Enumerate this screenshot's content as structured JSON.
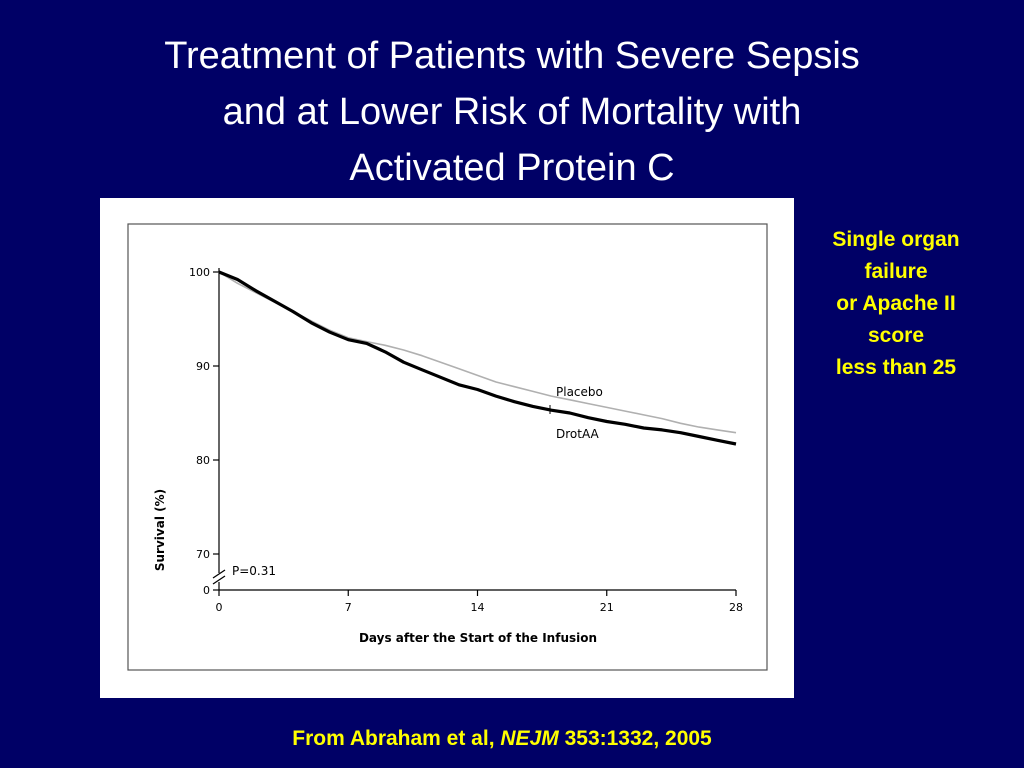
{
  "slide": {
    "title_lines": [
      "Treatment of Patients with Severe Sepsis",
      "and at Lower Risk of Mortality with",
      "Activated Protein C"
    ],
    "side_note_lines": [
      "Single organ",
      "failure",
      "or Apache II",
      "score",
      "less than 25"
    ],
    "citation": {
      "prefix": "From Abraham et al,",
      "journal": "NEJM",
      "suffix": "353:1332, 2005"
    }
  },
  "chart_data": {
    "type": "line",
    "xlabel": "Days after the Start of the Infusion",
    "ylabel": "Survival (%)",
    "xlim": [
      0,
      28
    ],
    "ylim": [
      70,
      100
    ],
    "x_ticks": [
      "0",
      "7",
      "14",
      "21",
      "28"
    ],
    "y_ticks": [
      "0",
      "70",
      "80",
      "90",
      "100"
    ],
    "axis_break": true,
    "annotation": "P=0.31",
    "x": [
      0,
      1,
      2,
      3,
      4,
      5,
      6,
      7,
      8,
      9,
      10,
      11,
      12,
      13,
      14,
      15,
      16,
      17,
      18,
      19,
      20,
      21,
      22,
      23,
      24,
      25,
      26,
      27,
      28
    ],
    "series": [
      {
        "name": "Placebo",
        "color": "#b0b0b0",
        "values": [
          100,
          98.8,
          97.8,
          96.8,
          95.8,
          94.8,
          93.8,
          93.0,
          92.6,
          92.2,
          91.7,
          91.1,
          90.4,
          89.7,
          89.0,
          88.3,
          87.8,
          87.3,
          86.8,
          86.4,
          86.0,
          85.6,
          85.2,
          84.8,
          84.4,
          83.9,
          83.5,
          83.2,
          82.9
        ]
      },
      {
        "name": "DrotAA",
        "color": "#000000",
        "values": [
          100,
          99.2,
          98.0,
          96.9,
          95.8,
          94.6,
          93.6,
          92.8,
          92.4,
          91.5,
          90.4,
          89.6,
          88.8,
          88.0,
          87.5,
          86.8,
          86.2,
          85.7,
          85.3,
          85.0,
          84.5,
          84.1,
          83.8,
          83.4,
          83.2,
          82.9,
          82.5,
          82.1,
          81.7
        ]
      }
    ]
  }
}
